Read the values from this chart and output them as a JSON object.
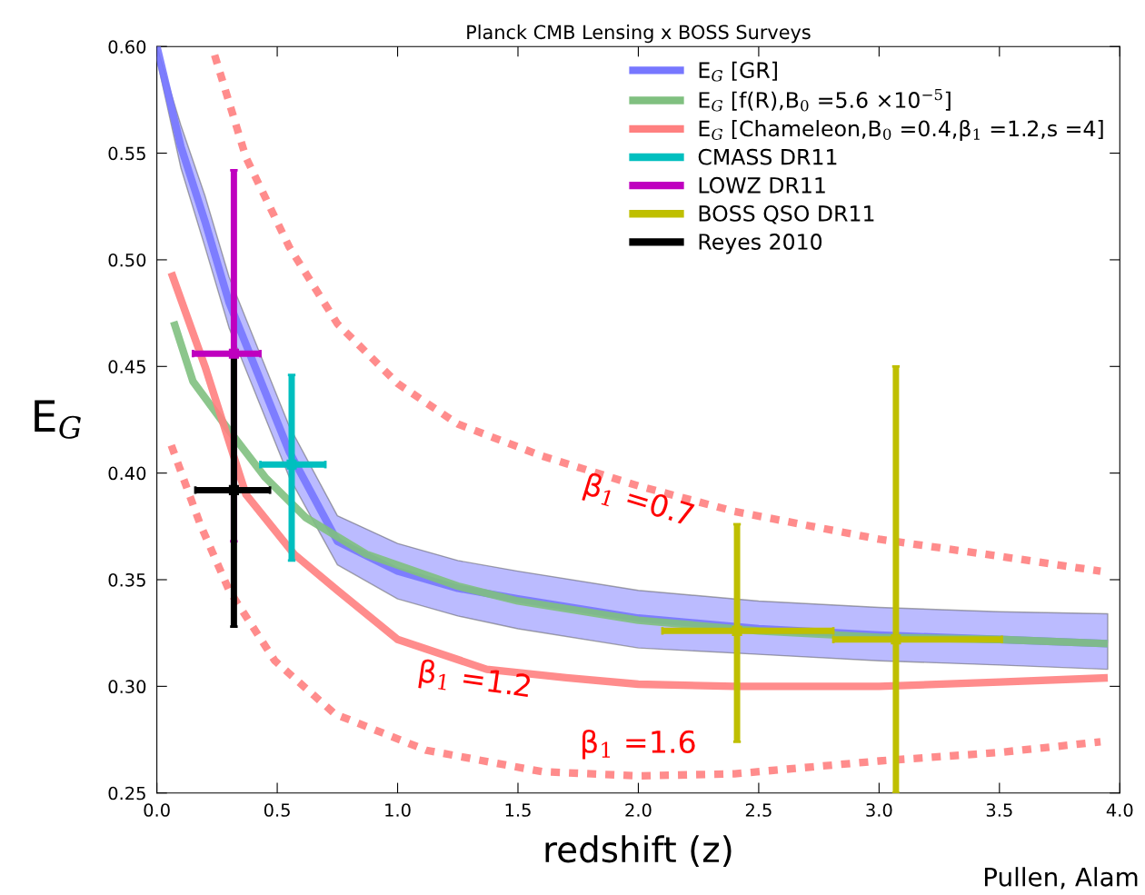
{
  "chart_data": {
    "type": "line",
    "title": "Planck CMB Lensing x BOSS Surveys",
    "xlabel": "redshift (z)",
    "ylabel": "E$_{G}$",
    "xlim": [
      0.0,
      4.0
    ],
    "xticks": [
      {
        "value": 0,
        "label": "0.0"
      },
      0.5,
      {
        "value": 1,
        "label": "1.0"
      },
      1.5,
      {
        "value": 2,
        "label": "2.0"
      },
      2.5,
      {
        "value": 3,
        "label": "3.0"
      },
      3.5,
      {
        "value": 4,
        "label": "4.0"
      }
    ],
    "ylim": [
      0.25,
      0.6
    ],
    "yticks": [
      0.25,
      {
        "value": 0.3,
        "label": "0.30"
      },
      0.35,
      {
        "value": 0.4,
        "label": "0.40"
      },
      0.45,
      {
        "value": 0.5,
        "label": "0.50"
      },
      0.55,
      {
        "value": 0.6,
        "label": "0.60"
      }
    ],
    "grid": false,
    "legend": "top right",
    "series": [
      {
        "name": "E$_{G}$ [GR]",
        "color": "#7777ff",
        "line_style": "solid",
        "x": [
          0,
          0.1,
          0.2,
          0.3,
          0.4,
          0.55,
          0.75,
          1.0,
          1.25,
          1.5,
          2.0,
          2.5,
          3.0,
          3.5,
          3.95
        ],
        "values": [
          0.6,
          0.553,
          0.518,
          0.48,
          0.452,
          0.41,
          0.368,
          0.354,
          0.346,
          0.341,
          0.332,
          0.327,
          0.324,
          0.322,
          0.32
        ],
        "lower": [
          0.594,
          0.543,
          0.506,
          0.468,
          0.44,
          0.398,
          0.357,
          0.341,
          0.333,
          0.327,
          0.318,
          0.315,
          0.312,
          0.31,
          0.308
        ],
        "upper": [
          0.6,
          0.563,
          0.53,
          0.492,
          0.464,
          0.422,
          0.38,
          0.367,
          0.359,
          0.354,
          0.345,
          0.34,
          0.337,
          0.335,
          0.334
        ]
      },
      {
        "name": "E$_{G}$ [f(R),B$_{0}$ =5.6 ×10$^{−5}$]",
        "color": "#80c080",
        "line_style": "solid",
        "x": [
          0.07,
          0.15,
          0.3,
          0.45,
          0.62,
          0.87,
          1.25,
          1.5,
          2.0,
          2.5,
          3.0,
          3.5,
          3.95
        ],
        "values": [
          0.471,
          0.443,
          0.42,
          0.398,
          0.379,
          0.362,
          0.347,
          0.34,
          0.331,
          0.326,
          0.323,
          0.322,
          0.32
        ]
      },
      {
        "name": "E$_{G}$ [Chameleon,B$_{0}$ =0.4,β$_{1}$ =1.2,s =4]",
        "color": "#ff8080",
        "line_style": "solid",
        "x": [
          0.06,
          0.2,
          0.37,
          0.57,
          0.75,
          1.0,
          1.37,
          1.7,
          2.0,
          2.4,
          3.0,
          3.5,
          3.95
        ],
        "values": [
          0.494,
          0.45,
          0.39,
          0.362,
          0.345,
          0.322,
          0.308,
          0.304,
          0.301,
          0.3,
          0.3,
          0.302,
          0.304
        ]
      },
      {
        "color": "#ff8080",
        "line_style": "dashed",
        "x": [
          0.24,
          0.37,
          0.55,
          0.75,
          1.0,
          1.25,
          1.6,
          2.0,
          2.4,
          3.0,
          3.5,
          3.92
        ],
        "values": [
          0.596,
          0.548,
          0.506,
          0.47,
          0.442,
          0.423,
          0.408,
          0.394,
          0.382,
          0.369,
          0.361,
          0.354
        ]
      },
      {
        "color": "#ff8080",
        "line_style": "dashed",
        "x": [
          0.06,
          0.18,
          0.3,
          0.49,
          0.74,
          1.12,
          1.6,
          2.0,
          2.4,
          3.0,
          3.5,
          3.92
        ],
        "values": [
          0.413,
          0.376,
          0.345,
          0.312,
          0.287,
          0.27,
          0.26,
          0.258,
          0.259,
          0.265,
          0.269,
          0.274
        ]
      },
      {
        "name": "CMASS DR11",
        "type": "scatter",
        "color": "#00bfbf",
        "x": [
          0.56
        ],
        "values": [
          0.404
        ],
        "errors": [
          [
            0.359,
            0.446
          ]
        ],
        "xerrors": [
          [
            0.43,
            0.7
          ]
        ]
      },
      {
        "name": "LOWZ DR11",
        "type": "scatter",
        "color": "#bf00bf",
        "x": [
          0.32
        ],
        "values": [
          0.456
        ],
        "errors": [
          [
            0.368,
            0.542
          ]
        ],
        "xerrors": [
          [
            0.15,
            0.43
          ]
        ]
      },
      {
        "name": "BOSS QSO DR11",
        "type": "scatter",
        "color": "#bfbf00",
        "x": [
          2.41,
          3.07
        ],
        "values": [
          0.326,
          0.322
        ],
        "errors": [
          [
            0.274,
            0.376
          ],
          [
            0.25,
            0.45
          ]
        ],
        "xerrors": [
          [
            2.1,
            2.81
          ],
          [
            2.81,
            3.51
          ]
        ]
      },
      {
        "name": "Reyes 2010",
        "type": "scatter",
        "color": "#000000",
        "x": [
          0.32
        ],
        "values": [
          0.392
        ],
        "errors": [
          [
            0.328,
            0.457
          ]
        ],
        "xerrors": [
          [
            0.16,
            0.47
          ]
        ]
      }
    ],
    "annotations": [
      "β$_{1}$ =0.7",
      "β$_{1}$ =1.2",
      "β$_{1}$ =1.6",
      "Pullen, Alam"
    ]
  }
}
